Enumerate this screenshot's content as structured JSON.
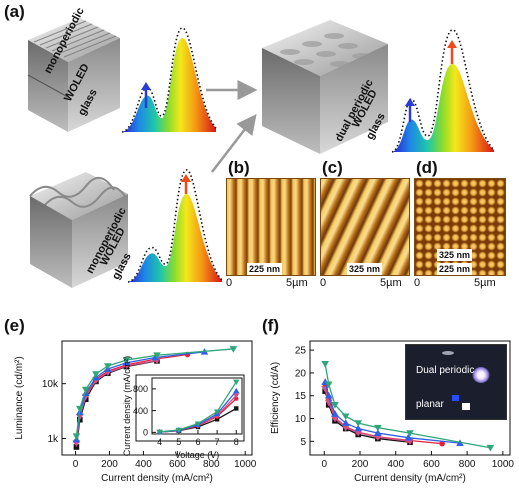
{
  "panels": {
    "a": "(a)",
    "b": "(b)",
    "c": "(c)",
    "d": "(d)",
    "e": "(e)",
    "f": "(f)"
  },
  "schematic": {
    "device1": {
      "line1": "monoperiodic",
      "line2": "WOLED",
      "line3": "glass"
    },
    "device2": {
      "line1": "dual periodic",
      "line2": "WOLED",
      "line3": "glass"
    },
    "device3": {
      "line1": "monoperiodic",
      "line2": "WOLED",
      "line3": "glass"
    }
  },
  "afm": {
    "b": {
      "scale": "225 nm",
      "axis_start": "0",
      "axis_end": "5µm"
    },
    "c": {
      "scale": "325 nm",
      "axis_start": "0",
      "axis_end": "5µm"
    },
    "d": {
      "scale1": "325 nm",
      "scale2": "225 nm",
      "axis_start": "0",
      "axis_end": "5µm"
    }
  },
  "inset_photo": {
    "top": "Dual periodic",
    "bottom": "planar"
  },
  "colors": {
    "black": "#111111",
    "red": "#e8213a",
    "pink": "#d0508a",
    "blue": "#2f5fe6",
    "green": "#2fa67a"
  },
  "chart_data": [
    {
      "type": "line",
      "panel": "e",
      "xlabel": "Current density (mA/cm²)",
      "ylabel": "Luminance (cd/m²)",
      "x_ticks": [
        "0",
        "200",
        "400",
        "600",
        "800",
        "1000"
      ],
      "y_ticks": [
        "1k",
        "10k"
      ],
      "xlim": [
        -80,
        1040
      ],
      "ylim": [
        500,
        60000
      ],
      "yscale": "log",
      "series": [
        {
          "color": "#111111",
          "marker": "square",
          "x": [
            5,
            25,
            60,
            120,
            190,
            300,
            480
          ],
          "y": [
            700,
            2200,
            5200,
            11000,
            15500,
            20500,
            26000
          ]
        },
        {
          "color": "#e8213a",
          "marker": "circle",
          "x": [
            5,
            25,
            60,
            120,
            190,
            300,
            470,
            660
          ],
          "y": [
            880,
            2700,
            6100,
            12000,
            17000,
            22000,
            28000,
            34000
          ]
        },
        {
          "color": "#d0508a",
          "marker": "triangle-down",
          "x": [
            5,
            25,
            60,
            120,
            190,
            300,
            480
          ],
          "y": [
            820,
            2500,
            5800,
            11500,
            16000,
            21000,
            26500
          ]
        },
        {
          "color": "#2f5fe6",
          "marker": "triangle-up",
          "x": [
            5,
            25,
            60,
            120,
            190,
            300,
            470,
            760
          ],
          "y": [
            950,
            3000,
            6700,
            13000,
            18500,
            24000,
            30000,
            38000
          ]
        },
        {
          "color": "#2fa67a",
          "marker": "triangle-down",
          "x": [
            5,
            25,
            60,
            120,
            190,
            300,
            480,
            930
          ],
          "y": [
            1100,
            3500,
            7800,
            15000,
            21000,
            27000,
            33000,
            43000
          ]
        }
      ],
      "inset": {
        "type": "line",
        "xlabel": "Voltage (V)",
        "ylabel": "Current density (mA/cm²)",
        "x_ticks": [
          "4",
          "5",
          "6",
          "7",
          "8"
        ],
        "y_ticks": [
          "0",
          "400",
          "800"
        ],
        "xlim": [
          3.6,
          8.3
        ],
        "ylim": [
          -30,
          1000
        ],
        "series": [
          {
            "color": "#111111",
            "marker": "square",
            "x": [
              4,
              5,
              6,
              7,
              8
            ],
            "y": [
              5,
              30,
              100,
              240,
              440
            ]
          },
          {
            "color": "#e8213a",
            "marker": "circle",
            "x": [
              4,
              5,
              6,
              7,
              8
            ],
            "y": [
              6,
              35,
              120,
              290,
              620
            ]
          },
          {
            "color": "#d0508a",
            "marker": "triangle-down",
            "x": [
              4,
              5,
              6,
              7,
              8
            ],
            "y": [
              6,
              38,
              130,
              310,
              680
            ]
          },
          {
            "color": "#2f5fe6",
            "marker": "triangle-up",
            "x": [
              4,
              5,
              6,
              7,
              8
            ],
            "y": [
              7,
              40,
              140,
              340,
              760
            ]
          },
          {
            "color": "#2fa67a",
            "marker": "triangle-down",
            "x": [
              4,
              5,
              6,
              7,
              8
            ],
            "y": [
              8,
              45,
              160,
              380,
              930
            ]
          }
        ]
      }
    },
    {
      "type": "line",
      "panel": "f",
      "xlabel": "Current density (mA/cm²)",
      "ylabel": "Efficiency (cd/A)",
      "x_ticks": [
        "0",
        "200",
        "400",
        "600",
        "800",
        "1000"
      ],
      "y_ticks": [
        "5",
        "10",
        "15",
        "20",
        "25"
      ],
      "xlim": [
        -80,
        1040
      ],
      "ylim": [
        2,
        27
      ],
      "yscale": "linear",
      "series": [
        {
          "color": "#111111",
          "marker": "square",
          "x": [
            5,
            25,
            60,
            120,
            190,
            300,
            480
          ],
          "y": [
            16,
            13,
            9.5,
            7.8,
            6.5,
            5.6,
            4.8
          ]
        },
        {
          "color": "#e8213a",
          "marker": "circle",
          "x": [
            5,
            25,
            60,
            120,
            190,
            300,
            470,
            660
          ],
          "y": [
            17,
            14,
            10.2,
            8.2,
            7,
            6,
            5.2,
            4.5
          ]
        },
        {
          "color": "#d0508a",
          "marker": "triangle-down",
          "x": [
            5,
            25,
            60,
            120,
            190,
            300,
            480
          ],
          "y": [
            16.5,
            13.5,
            10,
            8,
            6.9,
            5.9,
            5
          ]
        },
        {
          "color": "#2f5fe6",
          "marker": "triangle-up",
          "x": [
            5,
            25,
            60,
            120,
            190,
            300,
            470,
            760
          ],
          "y": [
            18,
            15,
            11,
            9,
            7.8,
            6.8,
            5.8,
            4.6
          ]
        },
        {
          "color": "#2fa67a",
          "marker": "triangle-down",
          "x": [
            5,
            25,
            60,
            120,
            190,
            300,
            480,
            930
          ],
          "y": [
            22,
            17.5,
            13,
            10.5,
            9,
            8,
            6.8,
            3.6
          ]
        }
      ]
    }
  ]
}
